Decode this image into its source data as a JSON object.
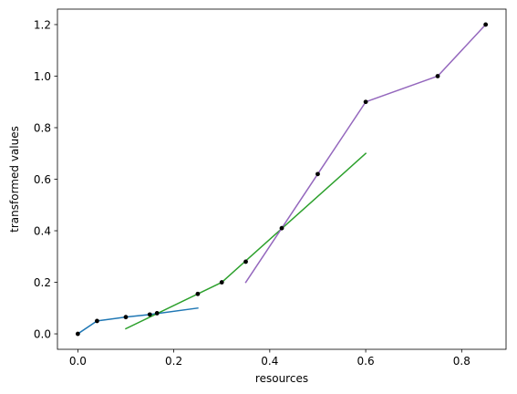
{
  "chart_data": {
    "type": "line",
    "title": "",
    "xlabel": "resources",
    "ylabel": "transformed values",
    "xlim": [
      -0.0425,
      0.8925
    ],
    "ylim": [
      -0.06,
      1.26
    ],
    "xticks": [
      0.0,
      0.2,
      0.4,
      0.6,
      0.8
    ],
    "xtick_labels": [
      "0.0",
      "0.2",
      "0.4",
      "0.6",
      "0.8"
    ],
    "yticks": [
      0.0,
      0.2,
      0.4,
      0.6,
      0.8,
      1.0,
      1.2
    ],
    "ytick_labels": [
      "0.0",
      "0.2",
      "0.4",
      "0.6",
      "0.8",
      "1.0",
      "1.2"
    ],
    "grid": false,
    "legend": "none",
    "series": [
      {
        "color": "#1f77b4",
        "x": [
          0.0,
          0.04,
          0.1,
          0.15,
          0.25
        ],
        "y": [
          0.0,
          0.05,
          0.065,
          0.075,
          0.1
        ]
      },
      {
        "color": "#2ca02c",
        "x": [
          0.1,
          0.3,
          0.6
        ],
        "y": [
          0.02,
          0.2,
          0.7
        ]
      },
      {
        "color": "#9467bd",
        "x": [
          0.35,
          0.425,
          0.5,
          0.6,
          0.75,
          0.85
        ],
        "y": [
          0.2,
          0.41,
          0.62,
          0.9,
          1.0,
          1.2
        ]
      }
    ],
    "points": {
      "color": "#000000",
      "x": [
        0.0,
        0.04,
        0.1,
        0.15,
        0.165,
        0.25,
        0.3,
        0.35,
        0.425,
        0.5,
        0.6,
        0.75,
        0.85
      ],
      "y": [
        0.0,
        0.05,
        0.065,
        0.075,
        0.08,
        0.155,
        0.2,
        0.28,
        0.41,
        0.62,
        0.9,
        1.0,
        1.2
      ]
    }
  }
}
